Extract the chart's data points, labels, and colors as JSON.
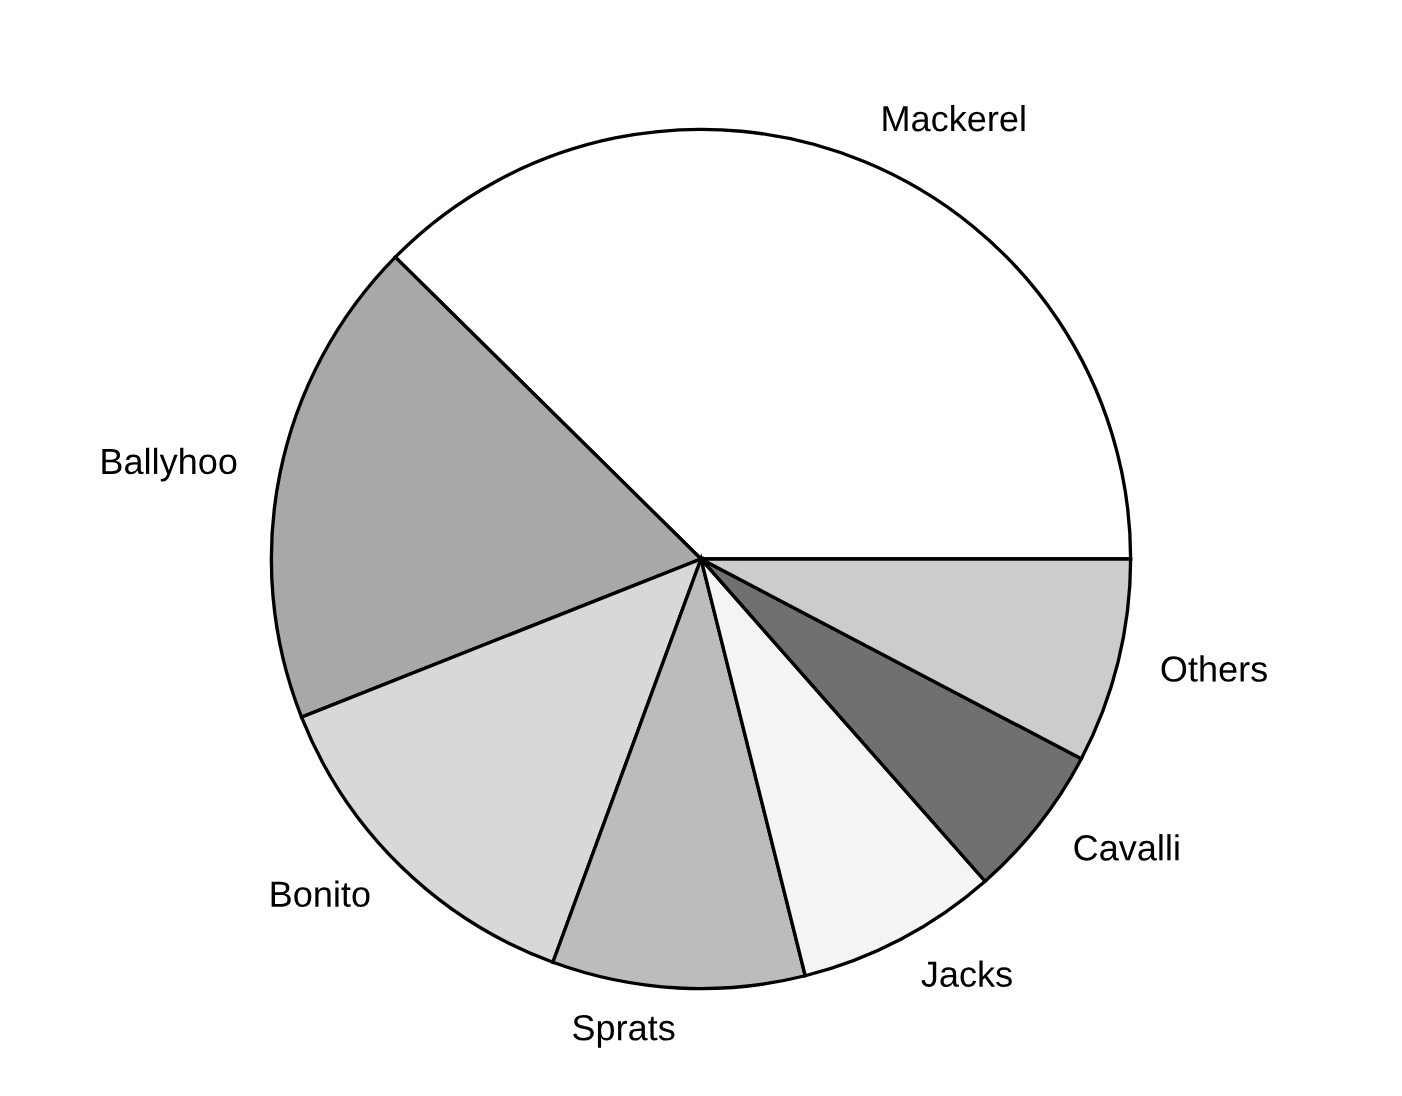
{
  "chart_data": {
    "type": "pie",
    "categories": [
      "Mackerel",
      "Ballyhoo",
      "Bonito",
      "Sprats",
      "Jacks",
      "Cavalli",
      "Others"
    ],
    "values": [
      37.6,
      18.4,
      13.4,
      9.5,
      7.6,
      5.8,
      7.7
    ],
    "colors": [
      "#ffffff",
      "#a8a8a8",
      "#d8d8d8",
      "#bcbcbc",
      "#f4f4f4",
      "#707070",
      "#cccccc"
    ],
    "legend": false
  }
}
